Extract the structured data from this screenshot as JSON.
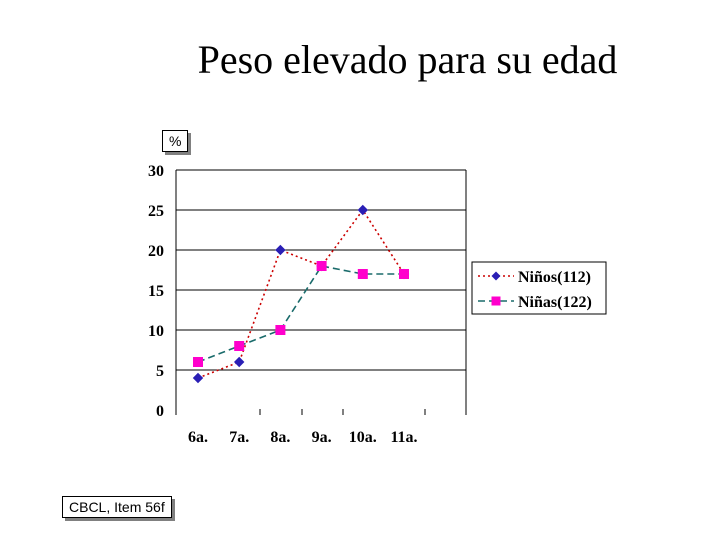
{
  "title": "Peso elevado para su edad",
  "unit_label": "%",
  "note": "CBCL, Item 56f",
  "chart_data": {
    "type": "line",
    "categories": [
      "6a.",
      "7a.",
      "8a.",
      "9a.",
      "10a.",
      "11a."
    ],
    "ylim": [
      0,
      30
    ],
    "yticks": [
      0,
      5,
      10,
      15,
      20,
      25,
      30
    ],
    "grid": true,
    "legend_position": "right",
    "series": [
      {
        "name": "Niños(112)",
        "color": "#cc0000",
        "marker_color": "#2a1fb5",
        "marker": "diamond",
        "dash": "dotted",
        "values": [
          4,
          6,
          20,
          18,
          25,
          17
        ]
      },
      {
        "name": "Niñas(122)",
        "color": "#1a6b6b",
        "marker_color": "#ff00cc",
        "marker": "square",
        "dash": "dashed",
        "values": [
          6,
          8,
          10,
          18,
          17,
          17
        ]
      }
    ]
  }
}
